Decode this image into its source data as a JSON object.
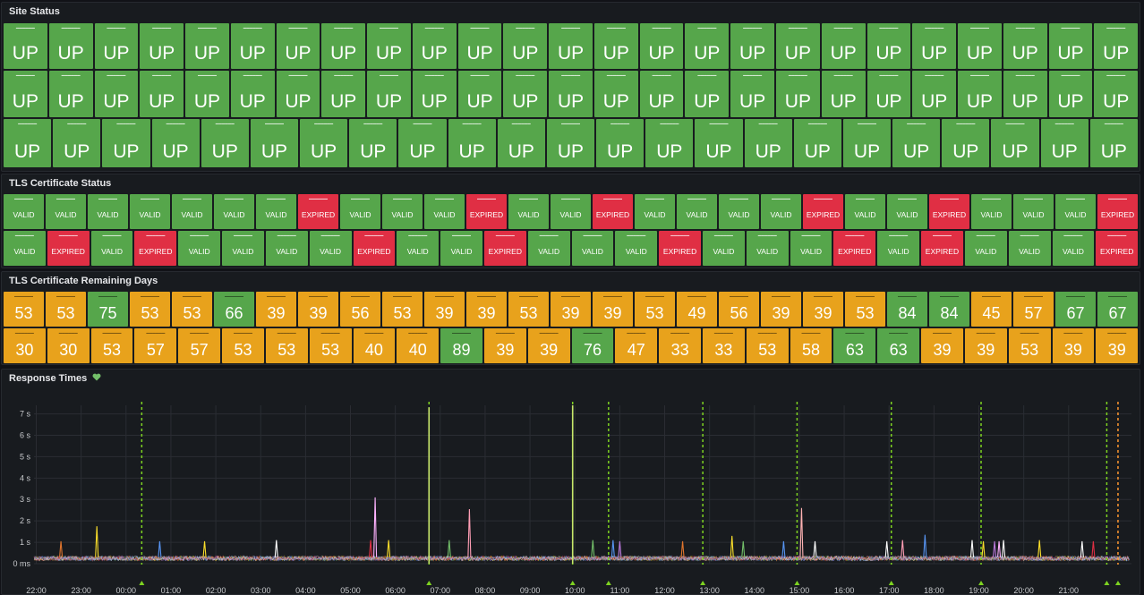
{
  "colors": {
    "green": "#56a64b",
    "red": "#e02f44",
    "orange": "#e8a21c",
    "axis": "#c7c9cc",
    "grid": "#2a2d33",
    "annotation": "#7ed321"
  },
  "site_status": {
    "title": "Site Status",
    "value_label": "UP",
    "rows": [
      {
        "count": 25,
        "status": "up"
      },
      {
        "count": 25,
        "status": "up"
      },
      {
        "count": 23,
        "status": "up"
      }
    ]
  },
  "tls_status": {
    "title": "TLS Certificate Status",
    "rows": [
      [
        "VALID",
        "VALID",
        "VALID",
        "VALID",
        "VALID",
        "VALID",
        "VALID",
        "EXPIRED",
        "VALID",
        "VALID",
        "VALID",
        "EXPIRED",
        "VALID",
        "VALID",
        "EXPIRED",
        "VALID",
        "VALID",
        "VALID",
        "VALID",
        "EXPIRED",
        "VALID",
        "VALID",
        "EXPIRED",
        "VALID",
        "VALID",
        "VALID",
        "EXPIRED"
      ],
      [
        "VALID",
        "EXPIRED",
        "VALID",
        "EXPIRED",
        "VALID",
        "VALID",
        "VALID",
        "VALID",
        "EXPIRED",
        "VALID",
        "VALID",
        "EXPIRED",
        "VALID",
        "VALID",
        "VALID",
        "EXPIRED",
        "VALID",
        "VALID",
        "VALID",
        "EXPIRED",
        "VALID",
        "EXPIRED",
        "VALID",
        "VALID",
        "VALID",
        "EXPIRED"
      ]
    ]
  },
  "tls_days": {
    "title": "TLS Certificate Remaining Days",
    "rows": [
      [
        53,
        53,
        75,
        53,
        53,
        66,
        39,
        39,
        56,
        53,
        39,
        39,
        53,
        39,
        39,
        53,
        49,
        56,
        39,
        39,
        53,
        84,
        84,
        45,
        57,
        67,
        67
      ],
      [
        30,
        30,
        53,
        57,
        57,
        53,
        53,
        53,
        40,
        40,
        89,
        39,
        39,
        76,
        47,
        33,
        33,
        53,
        58,
        63,
        63,
        39,
        39,
        53,
        39,
        39
      ]
    ]
  },
  "response_times": {
    "title": "Response Times",
    "chart_data": {
      "type": "line",
      "title": "Response Times",
      "xlabel": "",
      "ylabel": "",
      "x_ticks": [
        "22:00",
        "23:00",
        "00:00",
        "01:00",
        "02:00",
        "03:00",
        "04:00",
        "05:00",
        "06:00",
        "07:00",
        "08:00",
        "09:00",
        "10:00",
        "11:00",
        "12:00",
        "13:00",
        "14:00",
        "15:00",
        "16:00",
        "17:00",
        "18:00",
        "19:00",
        "20:00",
        "21:00"
      ],
      "y_ticks": [
        "0 ms",
        "1 s",
        "2 s",
        "3 s",
        "4 s",
        "5 s",
        "6 s",
        "7 s"
      ],
      "ylim": [
        0,
        7.4
      ],
      "xlim_hours": [
        -0.05,
        24.4
      ],
      "baseline_s": 0.25,
      "annotations_hours": [
        2.35,
        8.75,
        11.95,
        12.75,
        14.85,
        16.95,
        19.05,
        21.05,
        23.85,
        24.1
      ],
      "annotation_spikes": [
        {
          "x_hours": 8.75,
          "y_s": 7.3
        },
        {
          "x_hours": 11.95,
          "y_s": 7.4
        }
      ],
      "spikes": [
        {
          "x_hours": 0.55,
          "y_s": 1.05,
          "color": "#e0752d"
        },
        {
          "x_hours": 1.35,
          "y_s": 1.75,
          "color": "#fade2a"
        },
        {
          "x_hours": 2.75,
          "y_s": 1.05,
          "color": "#5794f2"
        },
        {
          "x_hours": 3.75,
          "y_s": 1.05,
          "color": "#fade2a"
        },
        {
          "x_hours": 5.35,
          "y_s": 1.1,
          "color": "#ffffff"
        },
        {
          "x_hours": 7.45,
          "y_s": 1.1,
          "color": "#e02f44"
        },
        {
          "x_hours": 7.55,
          "y_s": 3.1,
          "color": "#ffb3ff"
        },
        {
          "x_hours": 7.85,
          "y_s": 1.1,
          "color": "#fade2a"
        },
        {
          "x_hours": 9.2,
          "y_s": 1.1,
          "color": "#73bf69"
        },
        {
          "x_hours": 9.65,
          "y_s": 2.55,
          "color": "#ff9eb5"
        },
        {
          "x_hours": 12.4,
          "y_s": 1.1,
          "color": "#73bf69"
        },
        {
          "x_hours": 12.85,
          "y_s": 1.1,
          "color": "#5794f2"
        },
        {
          "x_hours": 13.0,
          "y_s": 1.05,
          "color": "#b877d9"
        },
        {
          "x_hours": 14.4,
          "y_s": 1.05,
          "color": "#e0752d"
        },
        {
          "x_hours": 15.5,
          "y_s": 1.3,
          "color": "#fade2a"
        },
        {
          "x_hours": 15.75,
          "y_s": 1.05,
          "color": "#73bf69"
        },
        {
          "x_hours": 16.65,
          "y_s": 1.05,
          "color": "#5794f2"
        },
        {
          "x_hours": 17.05,
          "y_s": 2.6,
          "color": "#ffb3b3"
        },
        {
          "x_hours": 17.35,
          "y_s": 1.05,
          "color": "#ffffff"
        },
        {
          "x_hours": 18.95,
          "y_s": 1.05,
          "color": "#ffffff"
        },
        {
          "x_hours": 19.3,
          "y_s": 1.1,
          "color": "#ff9eb5"
        },
        {
          "x_hours": 19.8,
          "y_s": 1.35,
          "color": "#5794f2"
        },
        {
          "x_hours": 20.85,
          "y_s": 1.1,
          "color": "#ffffff"
        },
        {
          "x_hours": 21.1,
          "y_s": 1.05,
          "color": "#fade2a"
        },
        {
          "x_hours": 21.35,
          "y_s": 1.05,
          "color": "#b877d9"
        },
        {
          "x_hours": 21.45,
          "y_s": 1.05,
          "color": "#ffb3ff"
        },
        {
          "x_hours": 21.55,
          "y_s": 1.1,
          "color": "#ffffff"
        },
        {
          "x_hours": 22.35,
          "y_s": 1.1,
          "color": "#fade2a"
        },
        {
          "x_hours": 23.3,
          "y_s": 1.05,
          "color": "#ffffff"
        },
        {
          "x_hours": 23.55,
          "y_s": 1.05,
          "color": "#e02f44"
        }
      ]
    }
  }
}
